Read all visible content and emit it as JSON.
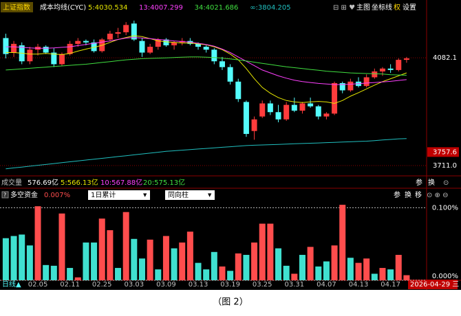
{
  "toolbar": {
    "index_name": "上证指数",
    "indicator": "成本均线(CYC)",
    "buttons": [
      "主图",
      "坐标线",
      "权",
      "设置"
    ]
  },
  "chart_data": [
    {
      "type": "candlestick",
      "categories": [
        null,
        null,
        null,
        null,
        "02.05",
        null,
        null,
        null,
        "02.11",
        null,
        null,
        null,
        "02.25",
        null,
        null,
        null,
        "03.03",
        null,
        null,
        null,
        "03.09",
        null,
        null,
        null,
        "03.13",
        null,
        null,
        null,
        "03.19",
        null,
        null,
        null,
        "03.25",
        null,
        null,
        null,
        "03.31",
        null,
        null,
        null,
        "04.07",
        null,
        null,
        null,
        "04.13",
        null,
        null,
        null,
        "04.17",
        null,
        null
      ],
      "open": [
        4150,
        4100,
        4125,
        4070,
        4110,
        4120,
        4100,
        4060,
        4095,
        4130,
        4140,
        4135,
        4105,
        4145,
        4165,
        4170,
        4200,
        4140,
        4100,
        4120,
        4145,
        4125,
        4135,
        4140,
        4130,
        4120,
        4110,
        4070,
        4050,
        4000,
        3930,
        3830,
        3880,
        3925,
        3895,
        3870,
        3920,
        3900,
        3925,
        3915,
        3880,
        3890,
        3995,
        3970,
        4000,
        3985,
        4015,
        4035,
        4045,
        4040,
        4075
      ],
      "high": [
        4165,
        4140,
        4135,
        4120,
        4130,
        4125,
        4115,
        4100,
        4140,
        4150,
        4145,
        4145,
        4150,
        4175,
        4185,
        4205,
        4210,
        4150,
        4130,
        4150,
        4150,
        4140,
        4150,
        4150,
        4135,
        4125,
        4115,
        4085,
        4060,
        4010,
        3935,
        3880,
        3935,
        3935,
        3920,
        3930,
        3945,
        3930,
        3945,
        3920,
        3895,
        4000,
        4000,
        4010,
        4015,
        4025,
        4045,
        4050,
        4060,
        4080,
        4085
      ],
      "low": [
        4080,
        4085,
        4060,
        4060,
        4090,
        4095,
        4050,
        4055,
        4090,
        4120,
        4125,
        4100,
        4100,
        4140,
        4150,
        4160,
        4140,
        4085,
        4095,
        4110,
        4120,
        4110,
        4125,
        4125,
        4110,
        4100,
        4060,
        4040,
        3990,
        3930,
        3810,
        3800,
        3875,
        3885,
        3860,
        3865,
        3895,
        3890,
        3910,
        3870,
        3870,
        3885,
        3960,
        3965,
        3980,
        3980,
        4010,
        4020,
        4030,
        4035,
        4065
      ],
      "close": [
        4095,
        4130,
        4070,
        4110,
        4120,
        4100,
        4060,
        4095,
        4130,
        4140,
        4135,
        4105,
        4145,
        4165,
        4170,
        4195,
        4145,
        4100,
        4120,
        4145,
        4125,
        4135,
        4140,
        4130,
        4120,
        4110,
        4070,
        4050,
        4000,
        3940,
        3820,
        3870,
        3925,
        3895,
        3870,
        3920,
        3900,
        3925,
        3915,
        3880,
        3890,
        3995,
        3970,
        4000,
        3985,
        4015,
        4035,
        4045,
        4040,
        4075,
        4080
      ],
      "up_color": "#ff3c3c",
      "down_color": "#54fcfc",
      "series": [
        {
          "name": "5:4030.534",
          "color": "#e8e800",
          "values": [
            4100,
            4100,
            4098,
            4095,
            4095,
            4097,
            4095,
            4093,
            4097,
            4105,
            4112,
            4118,
            4125,
            4135,
            4145,
            4152,
            4158,
            4155,
            4148,
            4140,
            4137,
            4135,
            4133,
            4133,
            4130,
            4127,
            4120,
            4110,
            4095,
            4075,
            4045,
            4010,
            3980,
            3960,
            3945,
            3935,
            3930,
            3928,
            3930,
            3932,
            3930,
            3925,
            3935,
            3950,
            3962,
            3975,
            3988,
            4000,
            4010,
            4020,
            4030
          ]
        },
        {
          "name": "13:4007.299",
          "color": "#ff40ff",
          "values": [
            4120,
            4120,
            4118,
            4116,
            4115,
            4115,
            4116,
            4118,
            4120,
            4124,
            4128,
            4132,
            4136,
            4140,
            4145,
            4150,
            4152,
            4150,
            4148,
            4145,
            4143,
            4140,
            4138,
            4136,
            4132,
            4128,
            4122,
            4112,
            4100,
            4085,
            4070,
            4055,
            4040,
            4030,
            4020,
            4012,
            4005,
            4000,
            3997,
            3994,
            3992,
            3990,
            3990,
            3991,
            3993,
            3995,
            3997,
            3999,
            4001,
            4004,
            4007
          ]
        },
        {
          "name": "34:4021.686",
          "color": "#40e040",
          "values": [
            4040,
            4042,
            4044,
            4046,
            4048,
            4050,
            4052,
            4054,
            4056,
            4058,
            4060,
            4063,
            4066,
            4069,
            4072,
            4075,
            4077,
            4079,
            4080,
            4081,
            4082,
            4083,
            4084,
            4085,
            4085,
            4084,
            4083,
            4081,
            4078,
            4075,
            4071,
            4067,
            4063,
            4059,
            4055,
            4051,
            4048,
            4045,
            4042,
            4039,
            4036,
            4034,
            4032,
            4030,
            4029,
            4028,
            4027,
            4026,
            4024,
            4023,
            4022
          ]
        },
        {
          "name": "∞:3804.205",
          "color": "#20c0c0",
          "values": [
            3700,
            3703,
            3706,
            3709,
            3712,
            3715,
            3718,
            3721,
            3724,
            3727,
            3730,
            3733,
            3736,
            3739,
            3742,
            3745,
            3748,
            3751,
            3754,
            3757,
            3760,
            3762,
            3764,
            3766,
            3768,
            3770,
            3772,
            3774,
            3776,
            3778,
            3780,
            3781,
            3782,
            3783,
            3784,
            3785,
            3786,
            3787,
            3788,
            3789,
            3790,
            3791,
            3792,
            3793,
            3794,
            3795,
            3797,
            3799,
            3801,
            3803,
            3804
          ]
        }
      ],
      "ylim": [
        3678,
        4281
      ],
      "yticks": [
        4082.1,
        {
          "value": 3711,
          "label": "3711.0"
        }
      ],
      "marker": {
        "value": 3757.6
      },
      "grid": true
    },
    {
      "type": "bar",
      "title": "多空资金",
      "last_value_label": "0.007%",
      "controls": [
        "1日累计",
        "同向柱"
      ],
      "buttons": [
        "参",
        "换",
        "移"
      ],
      "values": [
        0.058,
        0.061,
        0.063,
        0.048,
        0.102,
        0.021,
        0.02,
        0.092,
        0.017,
        0.004,
        0.052,
        0.052,
        0.085,
        0.069,
        0.017,
        0.094,
        0.057,
        0.03,
        0.056,
        0.015,
        0.061,
        0.044,
        0.052,
        0.067,
        0.024,
        0.015,
        0.039,
        0.019,
        0.013,
        0.037,
        0.035,
        0.052,
        0.078,
        0.078,
        0.044,
        0.02,
        0.009,
        0.035,
        0.046,
        0.019,
        0.026,
        0.048,
        0.104,
        0.031,
        0.024,
        0.03,
        0.009,
        0.017,
        0.015,
        0.035,
        0.007
      ],
      "colors": [
        "#40e0d0",
        "#40e0d0",
        "#40e0d0",
        "#40e0d0",
        "#ff4d4d",
        "#40e0d0",
        "#40e0d0",
        "#ff4d4d",
        "#40e0d0",
        "#ff4d4d",
        "#40e0d0",
        "#40e0d0",
        "#ff4d4d",
        "#ff4d4d",
        "#40e0d0",
        "#ff4d4d",
        "#40e0d0",
        "#40e0d0",
        "#ff4d4d",
        "#40e0d0",
        "#ff4d4d",
        "#40e0d0",
        "#ff4d4d",
        "#ff4d4d",
        "#40e0d0",
        "#40e0d0",
        "#40e0d0",
        "#ff4d4d",
        "#40e0d0",
        "#ff4d4d",
        "#40e0d0",
        "#ff4d4d",
        "#ff4d4d",
        "#ff4d4d",
        "#40e0d0",
        "#40e0d0",
        "#ff4d4d",
        "#40e0d0",
        "#ff4d4d",
        "#40e0d0",
        "#40e0d0",
        "#ff4d4d",
        "#ff4d4d",
        "#40e0d0",
        "#ff4d4d",
        "#ff4d4d",
        "#40e0d0",
        "#ff4d4d",
        "#40e0d0",
        "#ff4d4d",
        "#ff4d4d"
      ],
      "ylim": [
        0,
        0.106
      ],
      "yticks": [
        {
          "value": 0.1,
          "label": "0.100%"
        },
        {
          "value": 0,
          "label": "0.000%"
        }
      ]
    }
  ],
  "volume_header": {
    "label": "成交量",
    "total": "576.69亿",
    "ma5": "5:566.13亿",
    "ma10": "10:567.88亿",
    "ma20": "20:575.13亿",
    "buttons": [
      "参",
      "换"
    ]
  },
  "footer": {
    "period": "日线▲",
    "cursor_date": "2026-04-29 三"
  },
  "caption": "（图 2）"
}
